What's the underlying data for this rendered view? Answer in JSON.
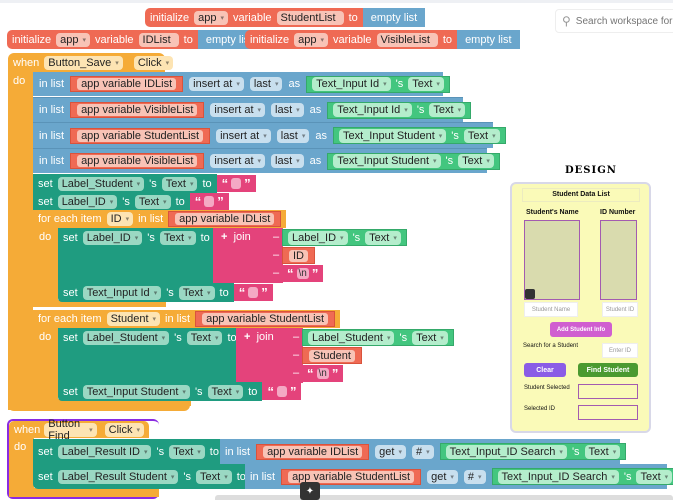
{
  "search": {
    "placeholder": "Search workspace for"
  },
  "globals": [
    {
      "kw": "initialize",
      "scope": "app",
      "variable": "variable",
      "name": "StudentList",
      "to": "to",
      "value": "empty list"
    },
    {
      "kw": "initialize",
      "scope": "app",
      "variable": "variable",
      "name": "IDList",
      "to": "to",
      "value": "empty list"
    },
    {
      "kw": "initialize",
      "scope": "app",
      "variable": "variable",
      "name": "VisibleList",
      "to": "to",
      "value": "empty list"
    }
  ],
  "save_event": {
    "when": "when",
    "component": "Button_Save",
    "event": "Click",
    "do": "do",
    "inserts": [
      {
        "in_list": "in list",
        "list": "app variable IDList",
        "insert_at": "insert at",
        "pos": "last",
        "as": "as",
        "component": "Text_Input Id",
        "s": "'s",
        "prop": "Text"
      },
      {
        "in_list": "in list",
        "list": "app variable VisibleList",
        "insert_at": "insert at",
        "pos": "last",
        "as": "as",
        "component": "Text_Input Id",
        "s": "'s",
        "prop": "Text"
      },
      {
        "in_list": "in list",
        "list": "app variable StudentList",
        "insert_at": "insert at",
        "pos": "last",
        "as": "as",
        "component": "Text_Input Student",
        "s": "'s",
        "prop": "Text"
      },
      {
        "in_list": "in list",
        "list": "app variable VisibleList",
        "insert_at": "insert at",
        "pos": "last",
        "as": "as",
        "component": "Text_Input Student",
        "s": "'s",
        "prop": "Text"
      }
    ],
    "sets": [
      {
        "set": "set",
        "component": "Label_Student",
        "s": "'s",
        "prop": "Text",
        "to": "to"
      },
      {
        "set": "set",
        "component": "Label_ID",
        "s": "'s",
        "prop": "Text",
        "to": "to"
      }
    ],
    "loops": [
      {
        "for_each": "for each item",
        "var": "ID",
        "in_list": "in list",
        "list": "app variable IDList",
        "do": "do",
        "set": "set",
        "target": "Label_ID",
        "s": "'s",
        "prop": "Text",
        "to": "to",
        "join": "join",
        "minus": "–",
        "plus": "+",
        "src_component": "Label_ID",
        "src_prop": "Text",
        "newline": "\\n",
        "clear_target": "Text_Input Id"
      },
      {
        "for_each": "for each item",
        "var": "Student",
        "in_list": "in list",
        "list": "app variable StudentList",
        "do": "do",
        "set": "set",
        "target": "Label_Student",
        "s": "'s",
        "prop": "Text",
        "to": "to",
        "join": "join",
        "minus": "–",
        "plus": "+",
        "src_component": "Label_Student",
        "src_prop": "Text",
        "newline": "\\n",
        "clear_target": "Text_Input Student"
      }
    ]
  },
  "find_event": {
    "when": "when",
    "component": "Button Find",
    "event": "Click",
    "do": "do",
    "rows": [
      {
        "set": "set",
        "target": "Label_Result ID",
        "s": "'s",
        "prop": "Text",
        "to": "to",
        "in_list": "in list",
        "list": "app variable IDList",
        "get": "get",
        "index": "#",
        "component": "Text_Input_ID Search",
        "prop2": "Text"
      },
      {
        "set": "set",
        "target": "Label_Result Student",
        "s": "'s",
        "prop": "Text",
        "to": "to",
        "in_list": "in list",
        "list": "app variable StudentList",
        "get": "get",
        "index": "#",
        "component": "Text_Input_ID Search",
        "prop2": "Text"
      }
    ]
  },
  "design": {
    "title": "DESIGN",
    "header": "Student Data List",
    "col1": "Student's Name",
    "col2": "ID Number",
    "name_placeholder": "Student Name",
    "id_placeholder": "Student ID",
    "add_button": "Add Student Info",
    "search_label": "Search for a Student",
    "search_placeholder": "Enter ID",
    "clear_button": "Clear",
    "find_button": "Find Student",
    "selected_student": "Student Selected",
    "selected_id": "Selected ID"
  }
}
